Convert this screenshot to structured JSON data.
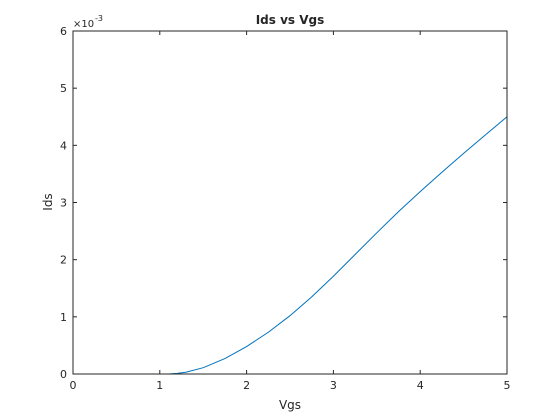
{
  "chart_data": {
    "type": "line",
    "title": "Ids vs Vgs",
    "xlabel": "Vgs",
    "ylabel": "Ids",
    "xlim": [
      0,
      5
    ],
    "ylim": [
      0,
      0.006
    ],
    "xticks": [
      0,
      1,
      2,
      3,
      4,
      5
    ],
    "xtick_labels": [
      "0",
      "1",
      "2",
      "3",
      "4",
      "5"
    ],
    "yticks": [
      0,
      0.001,
      0.002,
      0.003,
      0.004,
      0.005,
      0.006
    ],
    "ytick_labels": [
      "0",
      "1",
      "2",
      "3",
      "4",
      "5",
      "6"
    ],
    "y_exponent": {
      "base": "×10",
      "power": "-3"
    },
    "grid": false,
    "series": [
      {
        "color": "#0072BD",
        "x": [
          0,
          0.5,
          1.0,
          1.1,
          1.2,
          1.3,
          1.5,
          1.75,
          2.0,
          2.25,
          2.5,
          2.75,
          3.0,
          3.25,
          3.5,
          3.75,
          4.0,
          4.25,
          4.5,
          4.75,
          5.0
        ],
        "y": [
          0,
          0,
          0,
          0,
          1e-05,
          3e-05,
          0.00011,
          0.00027,
          0.00048,
          0.00073,
          0.00102,
          0.00135,
          0.00171,
          0.00209,
          0.00247,
          0.00284,
          0.00319,
          0.00353,
          0.00386,
          0.00418,
          0.0045
        ]
      }
    ]
  }
}
